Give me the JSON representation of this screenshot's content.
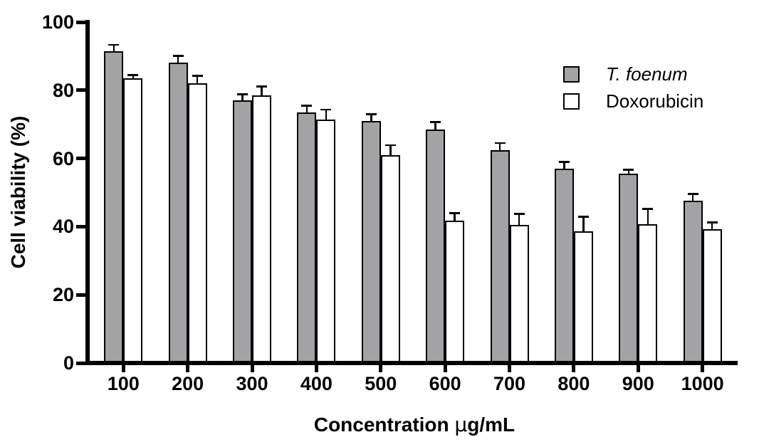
{
  "chart_data": {
    "type": "bar",
    "title": "",
    "xlabel": "Concentration µg/mL",
    "xlabel_parts": [
      "Concentration ",
      "µ",
      "g/mL"
    ],
    "ylabel": "Cell viability (%)",
    "categories": [
      "100",
      "200",
      "300",
      "400",
      "500",
      "600",
      "700",
      "800",
      "900",
      "1000"
    ],
    "series": [
      {
        "name": "T. foenum",
        "fill": "#a3a3a6",
        "values": [
          91.5,
          88,
          77,
          73.5,
          71,
          68.5,
          62.5,
          57,
          55.5,
          47.5
        ],
        "errors": [
          1.8,
          2.1,
          1.8,
          1.9,
          2.0,
          2.1,
          2.0,
          1.9,
          1.1,
          2.1
        ]
      },
      {
        "name": "Doxorubicin",
        "fill": "#ffffff",
        "values": [
          83.5,
          82,
          78.5,
          71.5,
          61,
          41.8,
          40.5,
          38.7,
          40.8,
          39.2
        ],
        "errors": [
          0.9,
          2.2,
          2.6,
          2.8,
          2.9,
          2.1,
          3.2,
          4.2,
          4.4,
          2.1
        ]
      }
    ],
    "ylim": [
      0,
      100
    ],
    "yticks": [
      0,
      20,
      40,
      60,
      80,
      100
    ],
    "grid": false,
    "legend_position": "top-right",
    "error_bars": "upper"
  },
  "colors": {
    "axis": "#000000",
    "bar_gray": "#a3a3a6",
    "bar_white": "#ffffff",
    "background": "#ffffff"
  }
}
